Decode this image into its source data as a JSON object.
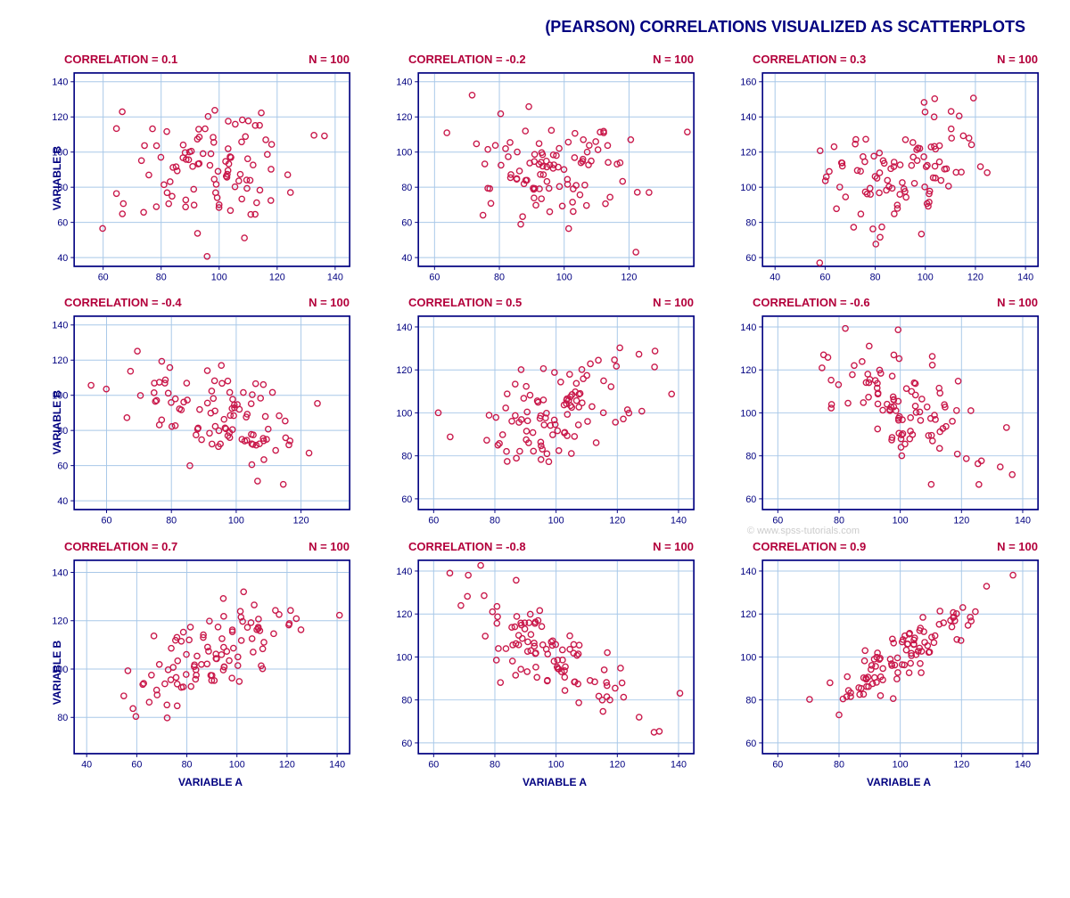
{
  "main_title": "(PEARSON) CORRELATIONS VISUALIZED AS SCATTERPLOTS",
  "watermark": "© www.spss-tutorials.com",
  "global": {
    "xlabel": "VARIABLE A",
    "ylabel": "VARIABLE B",
    "n_label_prefix": "N = ",
    "corr_label_prefix": "CORRELATION = ",
    "label_color": "#000080",
    "header_color": "#b3003b",
    "marker_stroke": "#c9184a",
    "marker_fill": "none",
    "marker_radius": 3.2,
    "marker_stroke_width": 1.4,
    "grid_color": "#a8c8e8",
    "border_color": "#000080",
    "background_color": "#ffffff",
    "tick_fontsize": 11,
    "label_fontsize": 12,
    "header_fontsize": 13,
    "title_fontsize": 18
  },
  "panels": [
    {
      "correlation": 0.1,
      "n": 100,
      "show_ylabel": true,
      "show_xlabel": false,
      "xlim": [
        50,
        145
      ],
      "xtick_start": 60,
      "xtick_step": 20,
      "xtick_end": 140,
      "ylim": [
        35,
        145
      ],
      "ytick_start": 40,
      "ytick_step": 20,
      "ytick_end": 140,
      "seed": 1
    },
    {
      "correlation": -0.2,
      "n": 100,
      "show_ylabel": false,
      "show_xlabel": false,
      "xlim": [
        55,
        140
      ],
      "xtick_start": 60,
      "xtick_step": 20,
      "xtick_end": 120,
      "ylim": [
        35,
        145
      ],
      "ytick_start": 40,
      "ytick_step": 20,
      "ytick_end": 140,
      "seed": 2
    },
    {
      "correlation": 0.3,
      "n": 100,
      "show_ylabel": false,
      "show_xlabel": false,
      "xlim": [
        35,
        145
      ],
      "xtick_start": 40,
      "xtick_step": 20,
      "xtick_end": 140,
      "ylim": [
        55,
        165
      ],
      "ytick_start": 60,
      "ytick_step": 20,
      "ytick_end": 160,
      "seed": 3
    },
    {
      "correlation": -0.4,
      "n": 100,
      "show_ylabel": true,
      "show_xlabel": false,
      "xlim": [
        50,
        135
      ],
      "xtick_start": 60,
      "xtick_step": 20,
      "xtick_end": 120,
      "ylim": [
        35,
        145
      ],
      "ytick_start": 40,
      "ytick_step": 20,
      "ytick_end": 140,
      "seed": 4
    },
    {
      "correlation": 0.5,
      "n": 100,
      "show_ylabel": false,
      "show_xlabel": false,
      "xlim": [
        55,
        145
      ],
      "xtick_start": 60,
      "xtick_step": 20,
      "xtick_end": 140,
      "ylim": [
        55,
        145
      ],
      "ytick_start": 60,
      "ytick_step": 20,
      "ytick_end": 140,
      "seed": 5
    },
    {
      "correlation": -0.6,
      "n": 100,
      "show_ylabel": false,
      "show_xlabel": false,
      "xlim": [
        55,
        145
      ],
      "xtick_start": 60,
      "xtick_step": 20,
      "xtick_end": 140,
      "ylim": [
        55,
        145
      ],
      "ytick_start": 60,
      "ytick_step": 20,
      "ytick_end": 140,
      "seed": 6
    },
    {
      "correlation": 0.7,
      "n": 100,
      "show_ylabel": true,
      "show_xlabel": true,
      "xlim": [
        35,
        145
      ],
      "xtick_start": 40,
      "xtick_step": 20,
      "xtick_end": 140,
      "ylim": [
        65,
        145
      ],
      "ytick_start": 80,
      "ytick_step": 20,
      "ytick_end": 140,
      "seed": 7
    },
    {
      "correlation": -0.8,
      "n": 100,
      "show_ylabel": false,
      "show_xlabel": true,
      "xlim": [
        55,
        145
      ],
      "xtick_start": 60,
      "xtick_step": 20,
      "xtick_end": 140,
      "ylim": [
        55,
        145
      ],
      "ytick_start": 60,
      "ytick_step": 20,
      "ytick_end": 140,
      "seed": 8
    },
    {
      "correlation": 0.9,
      "n": 100,
      "show_ylabel": false,
      "show_xlabel": true,
      "xlim": [
        55,
        145
      ],
      "xtick_start": 60,
      "xtick_step": 20,
      "xtick_end": 140,
      "ylim": [
        55,
        145
      ],
      "ytick_start": 60,
      "ytick_step": 20,
      "ytick_end": 140,
      "seed": 9
    }
  ]
}
